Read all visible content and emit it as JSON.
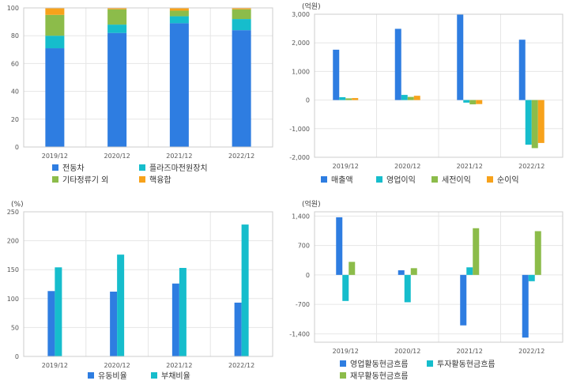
{
  "colors": {
    "blue": "#2e7de1",
    "cyan": "#16bdcc",
    "green": "#8cbc4a",
    "orange": "#f7a21b"
  },
  "chart_data": [
    {
      "type": "bar",
      "stacked": true,
      "categories": [
        "2019/12",
        "2020/12",
        "2021/12",
        "2022/12"
      ],
      "ylim": [
        0,
        100
      ],
      "yticks": [
        "0",
        "20",
        "40",
        "60",
        "80",
        "100"
      ],
      "series": [
        {
          "name": "전동차",
          "color": "#2e7de1",
          "values": [
            71,
            82,
            89,
            84
          ]
        },
        {
          "name": "플라즈마전원장치",
          "color": "#16bdcc",
          "values": [
            9,
            6,
            5,
            8
          ]
        },
        {
          "name": "기타정류기 외",
          "color": "#8cbc4a",
          "values": [
            15,
            11,
            4,
            7
          ]
        },
        {
          "name": "핵융합",
          "color": "#f7a21b",
          "values": [
            5,
            1,
            2,
            1
          ]
        }
      ],
      "legend_position": "bottom"
    },
    {
      "type": "bar",
      "unit": "(억원)",
      "categories": [
        "2019/12",
        "2020/12",
        "2021/12",
        "2022/12"
      ],
      "ylim": [
        -2000,
        3000
      ],
      "yticks": [
        "-2,000",
        "-1,000",
        "0",
        "1,000",
        "2,000",
        "3,000"
      ],
      "series": [
        {
          "name": "매출액",
          "color": "#2e7de1",
          "values": [
            1760,
            2490,
            2990,
            2110
          ]
        },
        {
          "name": "영업이익",
          "color": "#16bdcc",
          "values": [
            100,
            180,
            -90,
            -1560
          ]
        },
        {
          "name": "세전이익",
          "color": "#8cbc4a",
          "values": [
            60,
            110,
            -150,
            -1680
          ]
        },
        {
          "name": "순이익",
          "color": "#f7a21b",
          "values": [
            70,
            150,
            -140,
            -1500
          ]
        }
      ],
      "legend_position": "bottom"
    },
    {
      "type": "bar",
      "unit": "(%)",
      "categories": [
        "2019/12",
        "2020/12",
        "2021/12",
        "2022/12"
      ],
      "ylim": [
        0,
        250
      ],
      "yticks": [
        "0",
        "50",
        "100",
        "150",
        "200",
        "250"
      ],
      "series": [
        {
          "name": "유동비율",
          "color": "#2e7de1",
          "values": [
            113,
            112,
            126,
            93
          ]
        },
        {
          "name": "부채비율",
          "color": "#16bdcc",
          "values": [
            154,
            176,
            153,
            228
          ]
        }
      ],
      "legend_position": "bottom"
    },
    {
      "type": "bar",
      "unit": "(억원)",
      "categories": [
        "2019/12",
        "2020/12",
        "2021/12",
        "2022/12"
      ],
      "ylim": [
        -1600,
        1500
      ],
      "yticks": [
        "-1,400",
        "-700",
        "0",
        "700",
        "1,400"
      ],
      "ytick_values": [
        -1400,
        -700,
        0,
        700,
        1400
      ],
      "series": [
        {
          "name": "영업활동현금흐름",
          "color": "#2e7de1",
          "values": [
            1370,
            110,
            -1200,
            -1490
          ]
        },
        {
          "name": "투자활동현금흐름",
          "color": "#16bdcc",
          "values": [
            -620,
            -650,
            180,
            -150
          ]
        },
        {
          "name": "재무활동현금흐름",
          "color": "#8cbc4a",
          "values": [
            310,
            160,
            1110,
            1040
          ]
        }
      ],
      "legend_position": "bottom"
    }
  ]
}
